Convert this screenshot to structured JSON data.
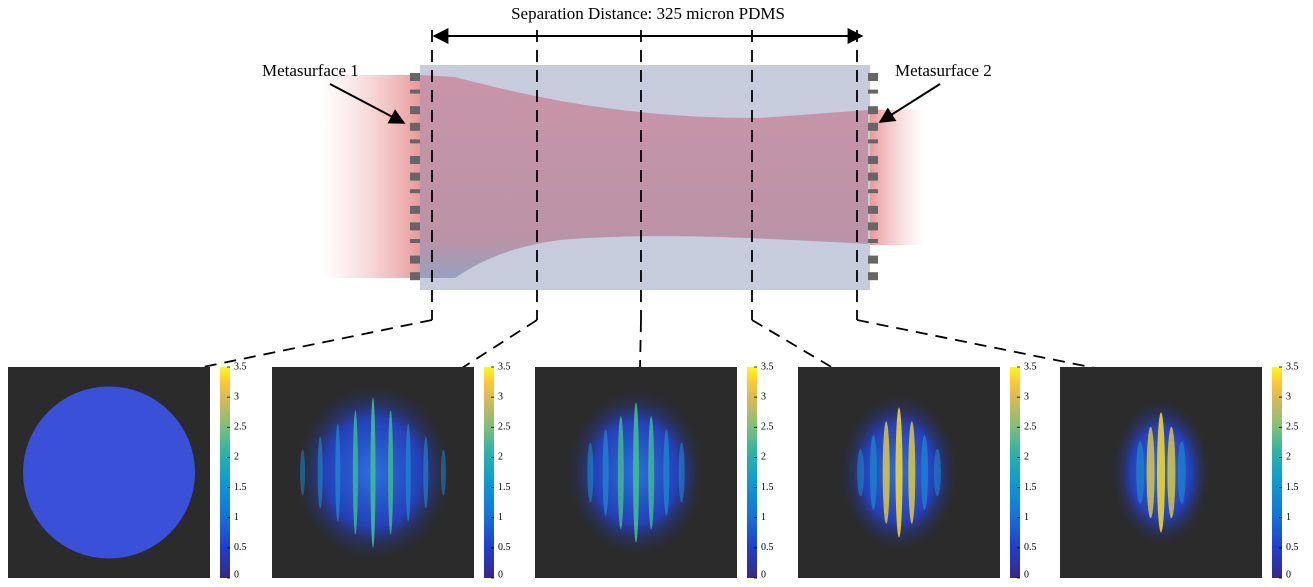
{
  "title": "Separation Distance: 325 micron PDMS",
  "labels": {
    "left": "Metasurface 1",
    "right": "Metasurface 2"
  },
  "colorbar": {
    "lim": [
      0,
      3.5
    ],
    "ticks": [
      0,
      0.5,
      1,
      1.5,
      2,
      2.5,
      3,
      3.5
    ]
  }
}
